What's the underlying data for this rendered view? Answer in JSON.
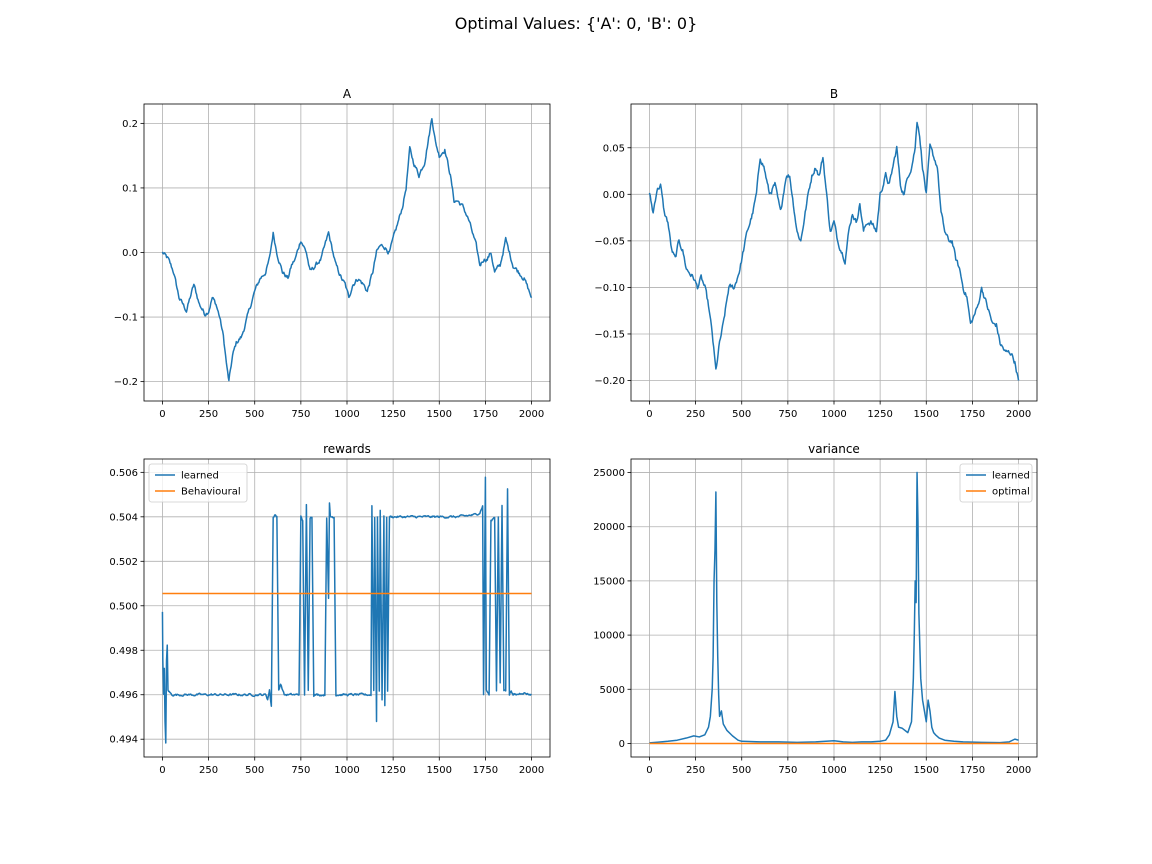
{
  "suptitle": "Optimal Values: {'A': 0, 'B': 0}",
  "colors": {
    "blue": "#1f77b4",
    "orange": "#ff7f0e",
    "grid": "#b0b0b0"
  },
  "chart_data": [
    {
      "id": "A",
      "type": "line",
      "title": "A",
      "xlabel": "",
      "ylabel": "",
      "xlim": [
        -100,
        2100
      ],
      "ylim": [
        -0.23,
        0.23
      ],
      "xticks": [
        0,
        250,
        500,
        750,
        1000,
        1250,
        1500,
        1750,
        2000
      ],
      "yticks": [
        -0.2,
        -0.1,
        0.0,
        0.1,
        0.2
      ],
      "ytick_labels": [
        "−0.2",
        "−0.1",
        "0.0",
        "0.1",
        "0.2"
      ],
      "grid": true,
      "legend": null,
      "series": [
        {
          "color": "#1f77b4",
          "noise": 0.006,
          "x": [
            0,
            30,
            60,
            90,
            110,
            130,
            150,
            170,
            200,
            230,
            250,
            270,
            290,
            310,
            330,
            350,
            360,
            380,
            400,
            430,
            460,
            500,
            530,
            560,
            580,
            600,
            620,
            650,
            680,
            700,
            720,
            750,
            780,
            800,
            830,
            860,
            880,
            900,
            940,
            970,
            990,
            1010,
            1030,
            1060,
            1090,
            1110,
            1140,
            1160,
            1180,
            1200,
            1230,
            1250,
            1280,
            1300,
            1320,
            1340,
            1360,
            1390,
            1420,
            1450,
            1460,
            1480,
            1500,
            1530,
            1560,
            1580,
            1600,
            1630,
            1660,
            1680,
            1700,
            1720,
            1740,
            1760,
            1780,
            1800,
            1830,
            1860,
            1880,
            1900,
            1930,
            1960,
            2000
          ],
          "y": [
            0.0,
            -0.01,
            -0.03,
            -0.07,
            -0.08,
            -0.09,
            -0.07,
            -0.05,
            -0.08,
            -0.095,
            -0.09,
            -0.07,
            -0.08,
            -0.1,
            -0.13,
            -0.18,
            -0.2,
            -0.16,
            -0.14,
            -0.13,
            -0.1,
            -0.06,
            -0.04,
            -0.03,
            -0.01,
            0.03,
            0.0,
            -0.03,
            -0.04,
            -0.02,
            -0.01,
            0.02,
            0.0,
            -0.03,
            -0.02,
            -0.01,
            0.01,
            0.03,
            -0.02,
            -0.04,
            -0.05,
            -0.07,
            -0.05,
            -0.04,
            -0.05,
            -0.06,
            -0.03,
            0.0,
            0.01,
            0.01,
            0.0,
            0.02,
            0.05,
            0.07,
            0.1,
            0.16,
            0.14,
            0.12,
            0.14,
            0.19,
            0.21,
            0.17,
            0.15,
            0.16,
            0.12,
            0.08,
            0.08,
            0.07,
            0.05,
            0.03,
            0.01,
            -0.02,
            -0.01,
            -0.01,
            0.0,
            -0.03,
            -0.02,
            0.02,
            0.0,
            -0.02,
            -0.03,
            -0.04,
            -0.07
          ]
        }
      ]
    },
    {
      "id": "B",
      "type": "line",
      "title": "B",
      "xlabel": "",
      "ylabel": "",
      "xlim": [
        -100,
        2100
      ],
      "ylim": [
        -0.222,
        0.097
      ],
      "xticks": [
        0,
        250,
        500,
        750,
        1000,
        1250,
        1500,
        1750,
        2000
      ],
      "yticks": [
        -0.2,
        -0.15,
        -0.1,
        -0.05,
        0.0,
        0.05
      ],
      "ytick_labels": [
        "−0.20",
        "−0.15",
        "−0.10",
        "−0.05",
        "0.00",
        "0.05"
      ],
      "grid": true,
      "legend": null,
      "series": [
        {
          "color": "#1f77b4",
          "noise": 0.005,
          "x": [
            0,
            20,
            40,
            60,
            80,
            100,
            120,
            140,
            160,
            180,
            200,
            220,
            240,
            260,
            280,
            300,
            320,
            340,
            360,
            380,
            400,
            430,
            460,
            490,
            510,
            530,
            560,
            580,
            600,
            620,
            650,
            680,
            710,
            740,
            760,
            780,
            800,
            820,
            860,
            880,
            900,
            920,
            940,
            960,
            980,
            1000,
            1020,
            1040,
            1060,
            1080,
            1100,
            1120,
            1140,
            1160,
            1180,
            1200,
            1230,
            1250,
            1280,
            1300,
            1320,
            1340,
            1360,
            1380,
            1400,
            1420,
            1440,
            1450,
            1460,
            1480,
            1500,
            1520,
            1540,
            1560,
            1580,
            1600,
            1620,
            1640,
            1660,
            1680,
            1700,
            1720,
            1740,
            1760,
            1780,
            1800,
            1830,
            1860,
            1880,
            1900,
            1930,
            1960,
            1980,
            2000
          ],
          "y": [
            0.0,
            -0.02,
            0.005,
            0.01,
            -0.02,
            -0.03,
            -0.06,
            -0.07,
            -0.05,
            -0.06,
            -0.08,
            -0.085,
            -0.09,
            -0.1,
            -0.09,
            -0.1,
            -0.12,
            -0.15,
            -0.19,
            -0.16,
            -0.14,
            -0.1,
            -0.1,
            -0.08,
            -0.06,
            -0.04,
            -0.02,
            0.0,
            0.04,
            0.03,
            0.0,
            0.01,
            -0.02,
            0.02,
            0.02,
            -0.01,
            -0.04,
            -0.05,
            0.0,
            0.02,
            0.03,
            0.02,
            0.04,
            0.0,
            -0.04,
            -0.03,
            -0.05,
            -0.06,
            -0.07,
            -0.04,
            -0.02,
            -0.03,
            -0.01,
            -0.04,
            -0.03,
            -0.03,
            -0.04,
            0.0,
            0.02,
            0.01,
            0.03,
            0.05,
            0.01,
            0.0,
            0.02,
            0.03,
            0.05,
            0.08,
            0.07,
            0.03,
            0.0,
            0.05,
            0.04,
            0.03,
            -0.02,
            -0.04,
            -0.05,
            -0.05,
            -0.07,
            -0.08,
            -0.1,
            -0.11,
            -0.14,
            -0.13,
            -0.12,
            -0.1,
            -0.12,
            -0.14,
            -0.14,
            -0.16,
            -0.17,
            -0.17,
            -0.18,
            -0.2
          ]
        }
      ]
    },
    {
      "id": "rewards",
      "type": "line",
      "title": "rewards",
      "xlabel": "",
      "ylabel": "",
      "xlim": [
        -100,
        2100
      ],
      "ylim": [
        0.4932,
        0.5066
      ],
      "xticks": [
        0,
        250,
        500,
        750,
        1000,
        1250,
        1500,
        1750,
        2000
      ],
      "yticks": [
        0.494,
        0.496,
        0.498,
        0.5,
        0.502,
        0.504,
        0.506
      ],
      "ytick_labels": [
        "0.494",
        "0.496",
        "0.498",
        "0.500",
        "0.502",
        "0.504",
        "0.506"
      ],
      "grid": true,
      "legend": "upper left",
      "series": [
        {
          "name": "learned",
          "color": "#1f77b4",
          "noise": 8e-05,
          "x": [
            0,
            2,
            6,
            10,
            14,
            18,
            22,
            26,
            30,
            40,
            50,
            60,
            80,
            150,
            300,
            450,
            560,
            570,
            580,
            590,
            600,
            610,
            620,
            630,
            640,
            660,
            700,
            740,
            750,
            760,
            770,
            780,
            790,
            800,
            810,
            820,
            830,
            860,
            880,
            890,
            900,
            905,
            910,
            920,
            930,
            940,
            980,
            1050,
            1130,
            1135,
            1145,
            1150,
            1160,
            1165,
            1175,
            1180,
            1190,
            1200,
            1205,
            1215,
            1220,
            1230,
            1240,
            1250,
            1300,
            1400,
            1500,
            1600,
            1700,
            1720,
            1735,
            1740,
            1750,
            1755,
            1770,
            1780,
            1800,
            1810,
            1820,
            1830,
            1840,
            1850,
            1860,
            1870,
            1880,
            1890,
            1900,
            1910,
            1920,
            1950,
            2000
          ],
          "y": [
            0.4997,
            0.4975,
            0.496,
            0.4972,
            0.4948,
            0.4938,
            0.4975,
            0.4982,
            0.4962,
            0.4961,
            0.496,
            0.496,
            0.496,
            0.496,
            0.496,
            0.496,
            0.496,
            0.4958,
            0.4962,
            0.4955,
            0.504,
            0.5041,
            0.504,
            0.4962,
            0.4965,
            0.496,
            0.496,
            0.496,
            0.504,
            0.5038,
            0.496,
            0.5045,
            0.4962,
            0.504,
            0.504,
            0.496,
            0.496,
            0.496,
            0.496,
            0.504,
            0.5003,
            0.5046,
            0.504,
            0.504,
            0.504,
            0.496,
            0.496,
            0.496,
            0.496,
            0.5045,
            0.4962,
            0.504,
            0.4948,
            0.504,
            0.4962,
            0.5043,
            0.4958,
            0.504,
            0.4955,
            0.504,
            0.4962,
            0.504,
            0.504,
            0.504,
            0.504,
            0.504,
            0.504,
            0.504,
            0.5041,
            0.5042,
            0.5045,
            0.496,
            0.5058,
            0.4962,
            0.496,
            0.5038,
            0.504,
            0.4962,
            0.504,
            0.4965,
            0.5045,
            0.4962,
            0.4962,
            0.5053,
            0.496,
            0.4962,
            0.496,
            0.496,
            0.496,
            0.4961,
            0.496
          ]
        },
        {
          "name": "Behavioural",
          "color": "#ff7f0e",
          "noise": 0,
          "x": [
            0,
            2000
          ],
          "y": [
            0.50055,
            0.50055
          ]
        }
      ]
    },
    {
      "id": "variance",
      "type": "line",
      "title": "variance",
      "xlabel": "",
      "ylabel": "",
      "xlim": [
        -100,
        2100
      ],
      "ylim": [
        -1250,
        26250
      ],
      "xticks": [
        0,
        250,
        500,
        750,
        1000,
        1250,
        1500,
        1750,
        2000
      ],
      "yticks": [
        0,
        5000,
        10000,
        15000,
        20000,
        25000
      ],
      "ytick_labels": [
        "0",
        "5000",
        "10000",
        "15000",
        "20000",
        "25000"
      ],
      "grid": true,
      "legend": "upper right",
      "series": [
        {
          "name": "learned",
          "color": "#1f77b4",
          "noise": 0,
          "x": [
            0,
            50,
            100,
            150,
            200,
            240,
            270,
            300,
            320,
            330,
            340,
            345,
            350,
            355,
            360,
            365,
            370,
            375,
            380,
            390,
            400,
            420,
            450,
            480,
            500,
            600,
            700,
            800,
            900,
            1000,
            1050,
            1100,
            1150,
            1200,
            1250,
            1280,
            1300,
            1320,
            1330,
            1340,
            1350,
            1370,
            1400,
            1420,
            1430,
            1435,
            1440,
            1445,
            1450,
            1455,
            1460,
            1470,
            1480,
            1490,
            1500,
            1510,
            1520,
            1530,
            1540,
            1550,
            1570,
            1600,
            1650,
            1700,
            1800,
            1900,
            1950,
            1980,
            2000
          ],
          "y": [
            50,
            120,
            200,
            300,
            500,
            700,
            600,
            800,
            1500,
            2500,
            5000,
            8000,
            15000,
            17800,
            23200,
            13000,
            8000,
            4500,
            2500,
            3000,
            1800,
            1200,
            700,
            300,
            200,
            150,
            150,
            100,
            150,
            250,
            150,
            100,
            150,
            150,
            200,
            300,
            800,
            2000,
            4800,
            2500,
            1500,
            1400,
            1000,
            2000,
            6000,
            10000,
            15000,
            13000,
            25000,
            20500,
            12000,
            6000,
            4000,
            3000,
            2000,
            4000,
            3000,
            1500,
            1000,
            800,
            500,
            300,
            200,
            150,
            100,
            80,
            150,
            400,
            300
          ]
        },
        {
          "name": "optimal",
          "color": "#ff7f0e",
          "noise": 0,
          "x": [
            0,
            2000
          ],
          "y": [
            0,
            0
          ]
        }
      ]
    }
  ]
}
